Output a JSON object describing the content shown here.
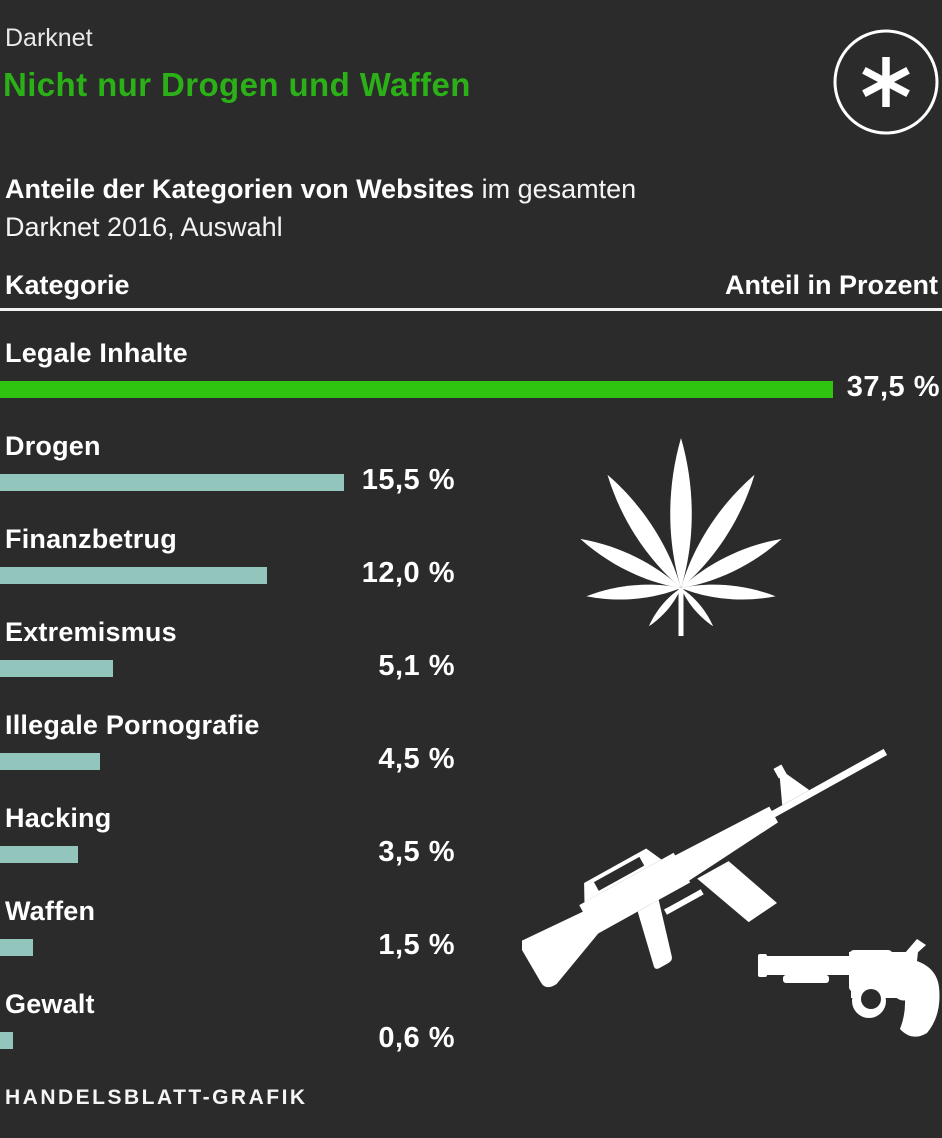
{
  "header": {
    "kicker": "Darknet",
    "title": "Nicht nur Drogen und Waffen"
  },
  "subtitle": {
    "bold": "Anteile der Kategorien von Websites",
    "regular": " im gesamten",
    "line2": "Darknet 2016, Auswahl"
  },
  "table": {
    "col_category": "Kategorie",
    "col_value": "Anteil in Prozent"
  },
  "chart_data": {
    "type": "bar",
    "orientation": "horizontal",
    "title": "Nicht nur Drogen und Waffen",
    "subtitle": "Anteile der Kategorien von Websites im gesamten Darknet 2016, Auswahl",
    "categories": [
      "Legale Inhalte",
      "Drogen",
      "Finanzbetrug",
      "Extremismus",
      "Illegale Pornografie",
      "Hacking",
      "Waffen",
      "Gewalt"
    ],
    "values": [
      37.5,
      15.5,
      12.0,
      5.1,
      4.5,
      3.5,
      1.5,
      0.6
    ],
    "value_labels": [
      "37,5 %",
      "15,5 %",
      "12,0 %",
      "5,1 %",
      "4,5 %",
      "3,5 %",
      "1,5 %",
      "0,6 %"
    ],
    "unit": "Prozent",
    "max_value": 37.5,
    "highlight_index": 0,
    "bar_colors": {
      "highlight": "#2ec40f",
      "default": "#92c5bc"
    },
    "grid": false,
    "legend": false
  },
  "icons": {
    "logo": "handelsblatt-asterisk-logo",
    "drugs": "cannabis-leaf-icon",
    "weapons_rifle": "assault-rifle-icon",
    "weapons_revolver": "revolver-icon"
  },
  "colors": {
    "background": "#2b2b2b",
    "title_green": "#2bb117",
    "bar_green": "#2ec40f",
    "bar_teal": "#92c5bc",
    "text": "#ffffff",
    "divider": "#f2f2f2"
  },
  "footer": {
    "credit": "HANDELSBLATT-GRAFIK"
  }
}
